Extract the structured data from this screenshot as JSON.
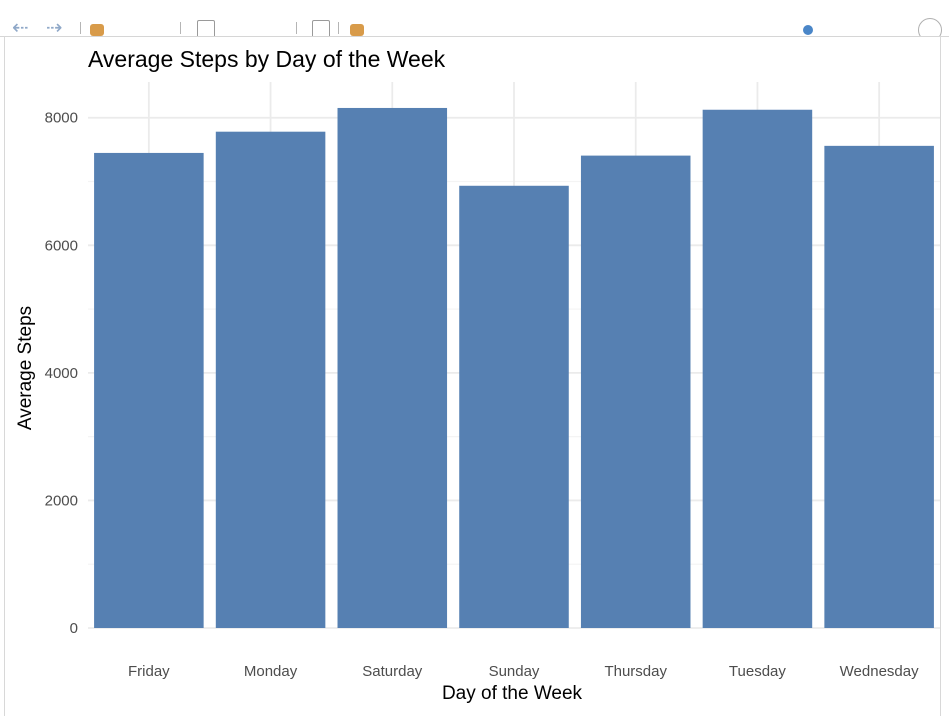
{
  "toolbar": {
    "icons": [
      "back-arrow-icon",
      "forward-arrow-icon",
      "edit-icon",
      "checkbox-icon",
      "page-icon",
      "brush-icon",
      "refresh-icon"
    ]
  },
  "colors": {
    "bar": "#5680b2",
    "grid_major": "#ebebeb",
    "grid_minor": "#f4f4f4",
    "axis_text": "#4d4d4d",
    "title_text": "#000000"
  },
  "chart_data": {
    "type": "bar",
    "title": "Average Steps by Day of the Week",
    "xlabel": "Day of the Week",
    "ylabel": "Average Steps",
    "categories": [
      "Friday",
      "Monday",
      "Saturday",
      "Sunday",
      "Thursday",
      "Tuesday",
      "Wednesday"
    ],
    "values": [
      7448,
      7781,
      8153,
      6933,
      7406,
      8125,
      7559
    ],
    "yticks": [
      0,
      2000,
      4000,
      6000,
      8000
    ],
    "ylim": [
      0,
      8560
    ],
    "grid": true,
    "legend": "none"
  }
}
